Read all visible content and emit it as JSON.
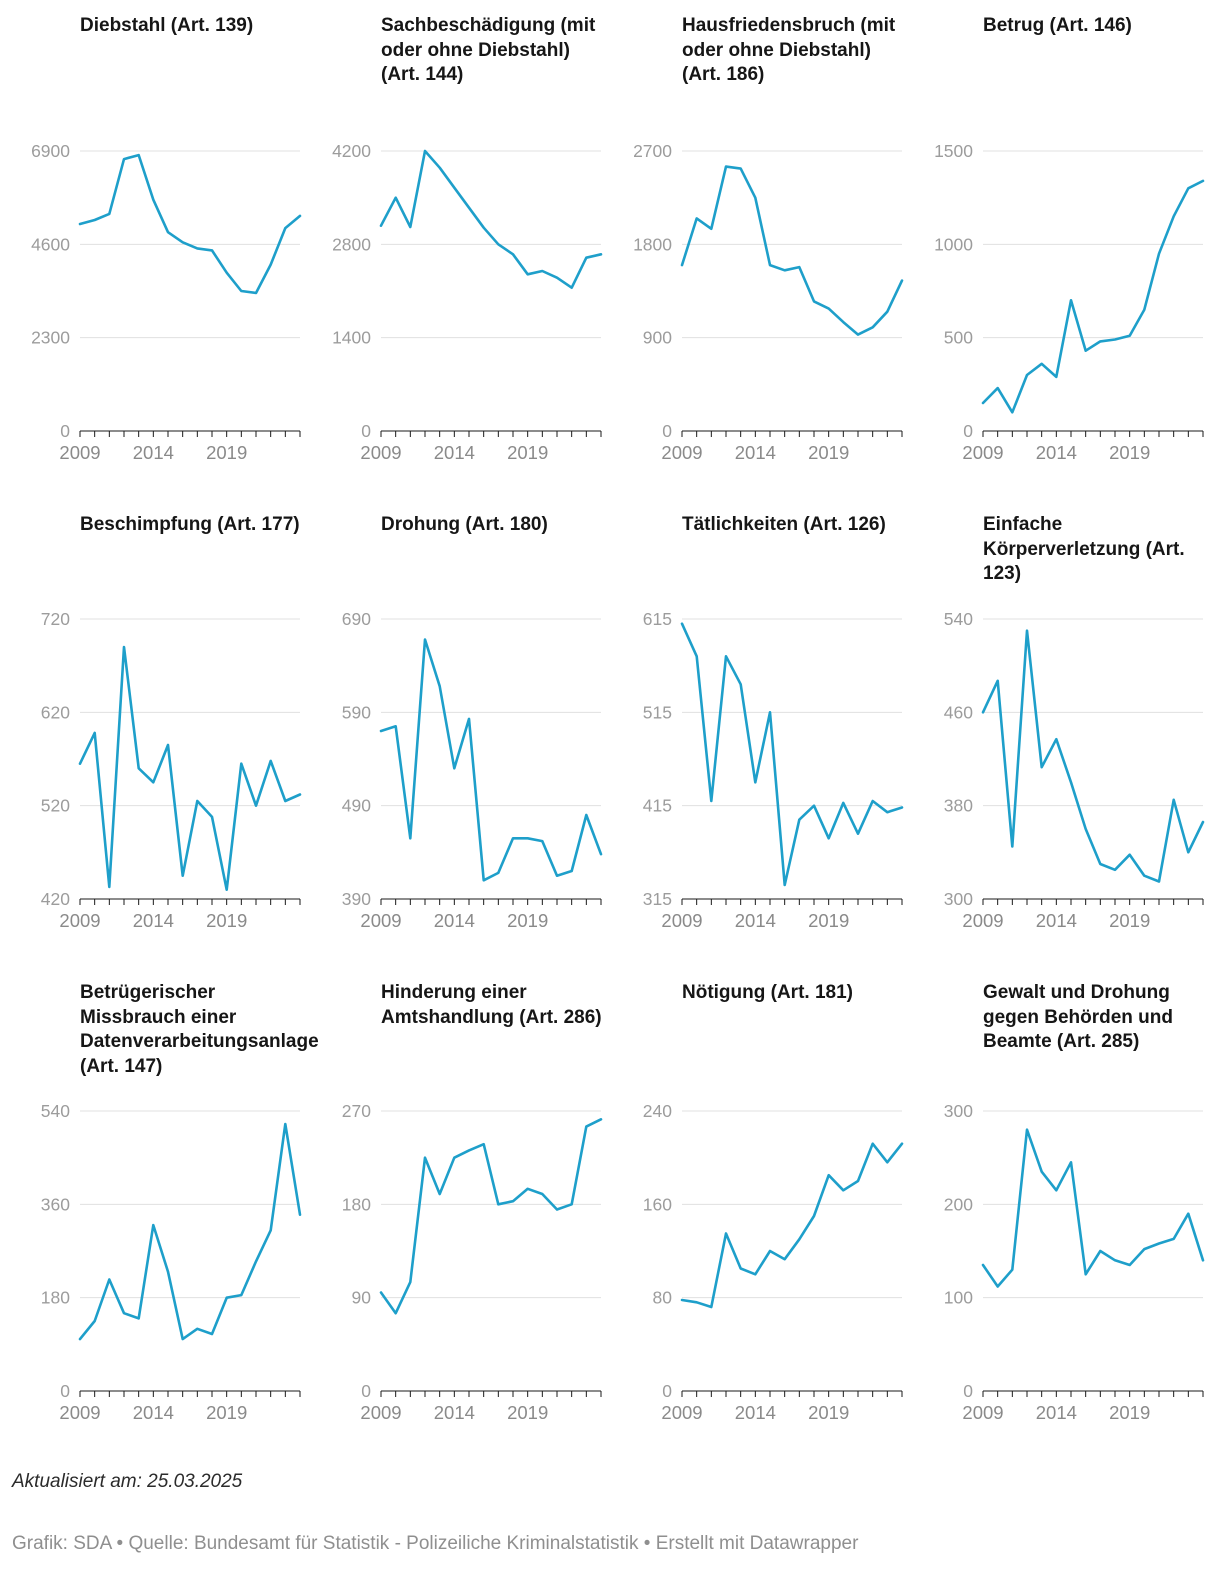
{
  "page": {
    "note": "Aktualisiert am: 25.03.2025",
    "credits": "Grafik: SDA • Quelle: Bundesamt für Statistik - Polizeiliche Kriminalstatistik • Erstellt mit Datawrapper"
  },
  "style": {
    "line_color": "#1e9fca",
    "grid_color": "#e0e0e0",
    "axis_color": "#1a1a1a",
    "tick_label_color": "#9c9c9c",
    "x_label_color": "#8a8a8a"
  },
  "chart_data": [
    {
      "type": "line",
      "title": "Diebstahl (Art. 139)",
      "x": [
        2009,
        2010,
        2011,
        2012,
        2013,
        2014,
        2015,
        2016,
        2017,
        2018,
        2019,
        2020,
        2021,
        2022,
        2023,
        2024
      ],
      "values": [
        5100,
        5200,
        5350,
        6700,
        6800,
        5700,
        4900,
        4650,
        4500,
        4450,
        3900,
        3450,
        3400,
        4100,
        5000,
        5300
      ],
      "ylim": [
        0,
        6900
      ],
      "yticks": [
        0,
        2300,
        4600,
        6900
      ],
      "xticks": [
        2009,
        2014,
        2019
      ],
      "xlabel": "",
      "ylabel": "",
      "grid": true
    },
    {
      "type": "line",
      "title": "Sachbeschädigung (mit oder ohne Diebstahl) (Art. 144)",
      "x": [
        2009,
        2010,
        2011,
        2012,
        2013,
        2014,
        2015,
        2016,
        2017,
        2018,
        2019,
        2020,
        2021,
        2022,
        2023,
        2024
      ],
      "values": [
        3080,
        3500,
        3060,
        4200,
        3950,
        3650,
        3350,
        3050,
        2800,
        2650,
        2350,
        2400,
        2300,
        2150,
        2600,
        2650
      ],
      "ylim": [
        0,
        4200
      ],
      "yticks": [
        0,
        1400,
        2800,
        4200
      ],
      "xticks": [
        2009,
        2014,
        2019
      ],
      "xlabel": "",
      "ylabel": "",
      "grid": true
    },
    {
      "type": "line",
      "title": "Hausfriedensbruch (mit oder ohne Diebstahl) (Art. 186)",
      "x": [
        2009,
        2010,
        2011,
        2012,
        2013,
        2014,
        2015,
        2016,
        2017,
        2018,
        2019,
        2020,
        2021,
        2022,
        2023,
        2024
      ],
      "values": [
        1600,
        2050,
        1950,
        2550,
        2530,
        2250,
        1600,
        1550,
        1580,
        1250,
        1180,
        1050,
        930,
        1000,
        1150,
        1450
      ],
      "ylim": [
        0,
        2700
      ],
      "yticks": [
        0,
        900,
        1800,
        2700
      ],
      "xticks": [
        2009,
        2014,
        2019
      ],
      "xlabel": "",
      "ylabel": "",
      "grid": true
    },
    {
      "type": "line",
      "title": "Betrug (Art. 146)",
      "x": [
        2009,
        2010,
        2011,
        2012,
        2013,
        2014,
        2015,
        2016,
        2017,
        2018,
        2019,
        2020,
        2021,
        2022,
        2023,
        2024
      ],
      "values": [
        150,
        230,
        100,
        300,
        360,
        290,
        700,
        430,
        480,
        490,
        510,
        650,
        950,
        1150,
        1300,
        1340
      ],
      "ylim": [
        0,
        1500
      ],
      "yticks": [
        0,
        500,
        1000,
        1500
      ],
      "xticks": [
        2009,
        2014,
        2019
      ],
      "xlabel": "",
      "ylabel": "",
      "grid": true
    },
    {
      "type": "line",
      "title": "Beschimpfung (Art. 177)",
      "x": [
        2009,
        2010,
        2011,
        2012,
        2013,
        2014,
        2015,
        2016,
        2017,
        2018,
        2019,
        2020,
        2021,
        2022,
        2023,
        2024
      ],
      "values": [
        565,
        598,
        433,
        690,
        560,
        545,
        585,
        445,
        525,
        508,
        430,
        565,
        520,
        568,
        525,
        532
      ],
      "ylim": [
        420,
        720
      ],
      "yticks": [
        420,
        520,
        620,
        720
      ],
      "xticks": [
        2009,
        2014,
        2019
      ],
      "xlabel": "",
      "ylabel": "",
      "grid": true
    },
    {
      "type": "line",
      "title": "Drohung (Art. 180)",
      "x": [
        2009,
        2010,
        2011,
        2012,
        2013,
        2014,
        2015,
        2016,
        2017,
        2018,
        2019,
        2020,
        2021,
        2022,
        2023,
        2024
      ],
      "values": [
        570,
        575,
        455,
        668,
        618,
        530,
        583,
        410,
        418,
        455,
        455,
        452,
        415,
        420,
        480,
        438
      ],
      "ylim": [
        390,
        690
      ],
      "yticks": [
        390,
        490,
        590,
        690
      ],
      "xticks": [
        2009,
        2014,
        2019
      ],
      "xlabel": "",
      "ylabel": "",
      "grid": true
    },
    {
      "type": "line",
      "title": "Tätlichkeiten (Art. 126)",
      "x": [
        2009,
        2010,
        2011,
        2012,
        2013,
        2014,
        2015,
        2016,
        2017,
        2018,
        2019,
        2020,
        2021,
        2022,
        2023,
        2024
      ],
      "values": [
        610,
        575,
        420,
        575,
        545,
        440,
        515,
        330,
        400,
        415,
        380,
        418,
        385,
        420,
        408,
        413
      ],
      "ylim": [
        315,
        615
      ],
      "yticks": [
        315,
        415,
        515,
        615
      ],
      "xticks": [
        2009,
        2014,
        2019
      ],
      "xlabel": "",
      "ylabel": "",
      "grid": true
    },
    {
      "type": "line",
      "title": "Einfache Körperverletzung (Art. 123)",
      "x": [
        2009,
        2010,
        2011,
        2012,
        2013,
        2014,
        2015,
        2016,
        2017,
        2018,
        2019,
        2020,
        2021,
        2022,
        2023,
        2024
      ],
      "values": [
        460,
        487,
        345,
        530,
        413,
        437,
        400,
        360,
        330,
        325,
        338,
        320,
        315,
        385,
        340,
        366
      ],
      "ylim": [
        300,
        540
      ],
      "yticks": [
        300,
        380,
        460,
        540
      ],
      "xticks": [
        2009,
        2014,
        2019
      ],
      "xlabel": "",
      "ylabel": "",
      "grid": true
    },
    {
      "type": "line",
      "title": "Betrügerischer Missbrauch einer Datenverarbeitungsanlage (Art. 147)",
      "x": [
        2009,
        2010,
        2011,
        2012,
        2013,
        2014,
        2015,
        2016,
        2017,
        2018,
        2019,
        2020,
        2021,
        2022,
        2023,
        2024
      ],
      "values": [
        100,
        135,
        215,
        150,
        140,
        320,
        230,
        100,
        120,
        110,
        180,
        185,
        250,
        310,
        515,
        340
      ],
      "ylim": [
        0,
        540
      ],
      "yticks": [
        0,
        180,
        360,
        540
      ],
      "xticks": [
        2009,
        2014,
        2019
      ],
      "xlabel": "",
      "ylabel": "",
      "grid": true
    },
    {
      "type": "line",
      "title": "Hinderung einer Amtshandlung (Art. 286)",
      "x": [
        2009,
        2010,
        2011,
        2012,
        2013,
        2014,
        2015,
        2016,
        2017,
        2018,
        2019,
        2020,
        2021,
        2022,
        2023,
        2024
      ],
      "values": [
        95,
        75,
        105,
        225,
        190,
        225,
        232,
        238,
        180,
        183,
        195,
        190,
        175,
        180,
        255,
        262
      ],
      "ylim": [
        0,
        270
      ],
      "yticks": [
        0,
        90,
        180,
        270
      ],
      "xticks": [
        2009,
        2014,
        2019
      ],
      "xlabel": "",
      "ylabel": "",
      "grid": true
    },
    {
      "type": "line",
      "title": "Nötigung (Art. 181)",
      "x": [
        2009,
        2010,
        2011,
        2012,
        2013,
        2014,
        2015,
        2016,
        2017,
        2018,
        2019,
        2020,
        2021,
        2022,
        2023,
        2024
      ],
      "values": [
        78,
        76,
        72,
        135,
        105,
        100,
        120,
        113,
        130,
        150,
        185,
        172,
        180,
        212,
        196,
        212
      ],
      "ylim": [
        0,
        240
      ],
      "yticks": [
        0,
        80,
        160,
        240
      ],
      "xticks": [
        2009,
        2014,
        2019
      ],
      "xlabel": "",
      "ylabel": "",
      "grid": true
    },
    {
      "type": "line",
      "title": "Gewalt und Drohung gegen Behörden und Beamte (Art. 285)",
      "x": [
        2009,
        2010,
        2011,
        2012,
        2013,
        2014,
        2015,
        2016,
        2017,
        2018,
        2019,
        2020,
        2021,
        2022,
        2023,
        2024
      ],
      "values": [
        135,
        112,
        130,
        280,
        235,
        215,
        245,
        125,
        150,
        140,
        135,
        152,
        158,
        163,
        190,
        140
      ],
      "ylim": [
        0,
        300
      ],
      "yticks": [
        0,
        100,
        200,
        300
      ],
      "xticks": [
        2009,
        2014,
        2019
      ],
      "xlabel": "",
      "ylabel": "",
      "grid": true
    }
  ]
}
